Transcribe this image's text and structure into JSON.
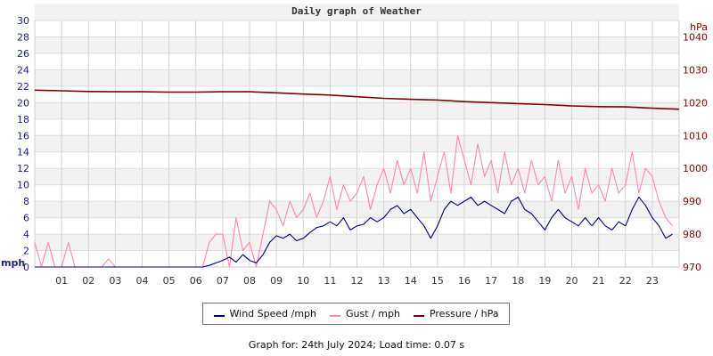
{
  "chart_data": {
    "type": "line",
    "title": "Daily graph of Weather",
    "ylabel": "mph",
    "y2label": "hPa",
    "ylim": [
      0,
      30
    ],
    "y2lim": [
      970,
      1045
    ],
    "yticks": [
      "0",
      "2",
      "4",
      "6",
      "8",
      "10",
      "12",
      "14",
      "16",
      "18",
      "20",
      "22",
      "24",
      "26",
      "28",
      "30"
    ],
    "y2ticks": [
      "970",
      "980",
      "990",
      "1000",
      "1010",
      "1020",
      "1030",
      "1040"
    ],
    "xticks": [
      "01",
      "02",
      "03",
      "04",
      "05",
      "06",
      "07",
      "08",
      "09",
      "10",
      "11",
      "12",
      "13",
      "14",
      "15",
      "16",
      "17",
      "18",
      "19",
      "20",
      "21",
      "22",
      "23"
    ],
    "xlim_hours": [
      0,
      24
    ],
    "grid": true,
    "legend_placement": "bottom",
    "colors": {
      "wind": "#00007f",
      "gust": "#ff88aa",
      "pressure": "#800000",
      "left_axis": "#1c1c8c",
      "right_axis": "#8b0000"
    },
    "series": [
      {
        "name": "Wind Speed /mph",
        "axis": "left",
        "interval_hours": 0.25,
        "values": [
          0,
          0,
          0,
          0,
          0,
          0,
          0,
          0,
          0,
          0,
          0,
          0,
          0,
          0,
          0,
          0,
          0,
          0,
          0,
          0,
          0,
          0,
          0,
          0,
          0,
          0,
          0.2,
          0.5,
          0.8,
          1.2,
          0.6,
          1.5,
          0.8,
          0.5,
          1.5,
          3.0,
          3.8,
          3.5,
          4.0,
          3.2,
          3.5,
          4.2,
          4.8,
          5.0,
          5.5,
          5.0,
          6.0,
          4.5,
          5.0,
          5.2,
          6.0,
          5.5,
          6.0,
          7.0,
          7.5,
          6.5,
          7.0,
          6.0,
          5.0,
          3.5,
          5.0,
          7.0,
          8.0,
          7.5,
          8.0,
          8.5,
          7.5,
          8.0,
          7.5,
          7.0,
          6.5,
          8.0,
          8.5,
          7.0,
          6.5,
          5.5,
          4.5,
          6.0,
          7.0,
          6.0,
          5.5,
          5.0,
          6.0,
          5.0,
          6.0,
          5.0,
          4.5,
          5.5,
          5.0,
          7.0,
          8.5,
          7.5,
          6.0,
          5.0,
          3.5,
          4.0
        ]
      },
      {
        "name": "Gust / mph",
        "axis": "left",
        "interval_hours": 0.25,
        "values": [
          3,
          0,
          3,
          0,
          0,
          3,
          0,
          0,
          0,
          0,
          0,
          1,
          0,
          0,
          0,
          0,
          0,
          0,
          0,
          0,
          0,
          0,
          0,
          0,
          0,
          0,
          3,
          4,
          4,
          0,
          6,
          2,
          3,
          0,
          4,
          8,
          7,
          5,
          8,
          6,
          7,
          9,
          6,
          8,
          11,
          7,
          10,
          8,
          9,
          11,
          7,
          10,
          12,
          9,
          13,
          10,
          12,
          9,
          14,
          8,
          11,
          14,
          9,
          16,
          13,
          10,
          15,
          11,
          13,
          9,
          14,
          10,
          12,
          9,
          13,
          10,
          11,
          8,
          13,
          9,
          11,
          7,
          12,
          9,
          10,
          8,
          12,
          9,
          10,
          14,
          9,
          12,
          11,
          8,
          6,
          5
        ]
      },
      {
        "name": "Pressure / hPa",
        "axis": "right",
        "interval_hours": 1,
        "values": [
          1023.8,
          1023.6,
          1023.4,
          1023.3,
          1023.3,
          1023.2,
          1023.2,
          1023.3,
          1023.3,
          1023.0,
          1022.6,
          1022.3,
          1021.8,
          1021.3,
          1021.0,
          1020.8,
          1020.3,
          1020.0,
          1019.7,
          1019.4,
          1019.0,
          1018.8,
          1018.7,
          1018.3,
          1018.0
        ]
      }
    ]
  },
  "footer": "Graph for: 24th July 2024; Load time: 0.07 s"
}
